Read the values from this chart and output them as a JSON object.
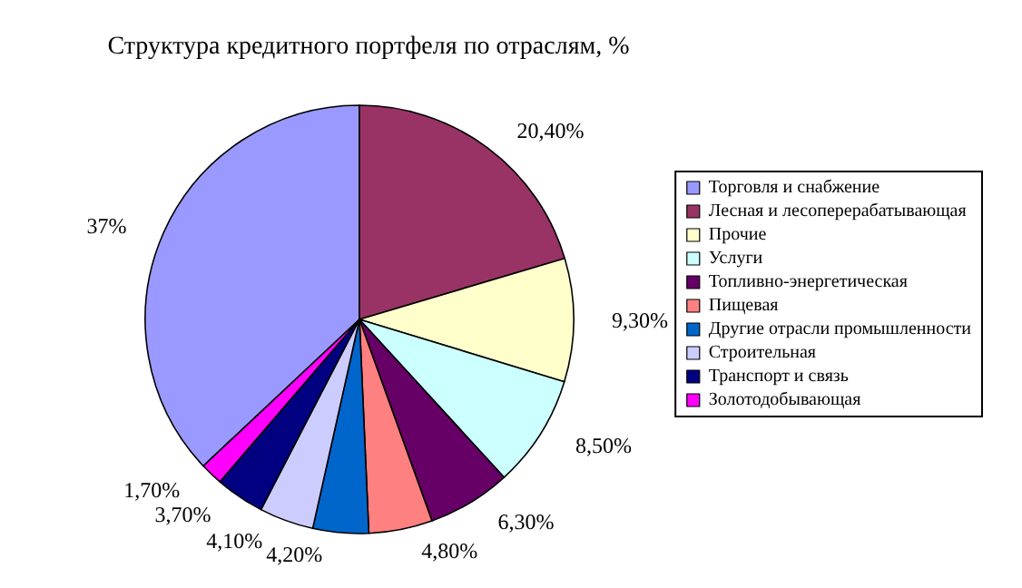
{
  "chart_data": {
    "type": "pie",
    "title": "Структура кредитного портфеля по отраслям, %",
    "categories": [
      "Торговля и снабжение",
      "Лесная и лесоперерабатывающая",
      "Прочие",
      "Услуги",
      "Топливно-энергетическая",
      "Пищевая",
      "Другие отрасли промышленности",
      "Строительная",
      "Транспорт и связь",
      "Золотодобывающая"
    ],
    "values": [
      37,
      20.4,
      9.3,
      8.5,
      6.3,
      4.8,
      4.2,
      4.1,
      3.7,
      1.7
    ],
    "value_labels": [
      "37%",
      "20,40%",
      "9,30%",
      "8,50%",
      "6,30%",
      "4,80%",
      "4,20%",
      "4,10%",
      "3,70%",
      "1,70%"
    ],
    "colors": [
      "#9999ff",
      "#993366",
      "#ffffcc",
      "#ccffff",
      "#660066",
      "#ff8080",
      "#0066cc",
      "#ccccff",
      "#000080",
      "#ff00ff"
    ],
    "legend": "right"
  }
}
